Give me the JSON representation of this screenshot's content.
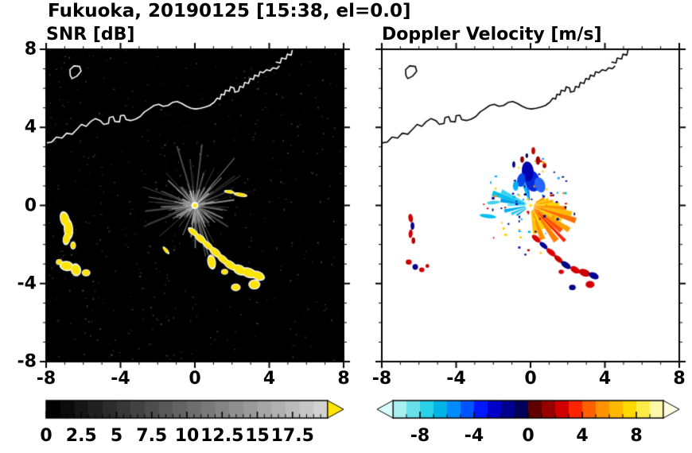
{
  "title": "Fukuoka, 20190125 [15:38, el=0.0]",
  "chart_data": {
    "type": "heatmap",
    "title": "Fukuoka, 20190125 [15:38, el=0.0]",
    "station": "Fukuoka",
    "date": "20190125",
    "time": "15:38",
    "elevation": "el=0.0",
    "subplots": [
      {
        "id": "snr",
        "title": "SNR [dB]",
        "xlim": [
          -8,
          8
        ],
        "ylim": [
          -8,
          8
        ],
        "xticks": [
          -8,
          -4,
          0,
          4,
          8
        ],
        "yticks": [
          8,
          4,
          0,
          -4,
          -8
        ],
        "minor_tick_step": 1,
        "background": "#000000",
        "coast_color": "#ffffff",
        "colorbar": {
          "range": [
            0,
            20
          ],
          "tick_values": [
            0,
            2.5,
            5,
            7.5,
            10,
            12.5,
            15,
            17.5
          ],
          "tick_labels": [
            "0",
            "2.5",
            "5",
            "7.5",
            "10",
            "12.5",
            "15",
            "17.5"
          ],
          "minor_step": 0.5,
          "cell_colors": [
            "#000000",
            "#0b0b0b",
            "#161616",
            "#212121",
            "#2c2c2c",
            "#373737",
            "#424242",
            "#4d4d4d",
            "#585858",
            "#636363",
            "#6e6e6e",
            "#797979",
            "#848484",
            "#8f8f8f",
            "#9a9a9a",
            "#a5a5a5",
            "#b0b0b0",
            "#bbbbbb",
            "#c6c6c6",
            "#d1d1d1"
          ],
          "left_arrow_color": null,
          "right_arrow_color": "#ffe400"
        }
      },
      {
        "id": "velocity",
        "title": "Doppler Velocity [m/s]",
        "xlim": [
          -8,
          8
        ],
        "ylim": [
          -8,
          8
        ],
        "xticks": [
          -8,
          -4,
          0,
          4,
          8
        ],
        "yticks": [
          8,
          4,
          0,
          -4,
          -8
        ],
        "minor_tick_step": 1,
        "background": "#ffffff",
        "coast_color": "#000000",
        "colorbar": {
          "range": [
            -10,
            10
          ],
          "tick_values": [
            -8,
            -4,
            0,
            4,
            8
          ],
          "tick_labels": [
            "-8",
            "-4",
            "0",
            "4",
            "8"
          ],
          "minor_step": 1,
          "cell_colors": [
            "#a8f0f0",
            "#68e0ec",
            "#28d0e8",
            "#00b4e8",
            "#008cff",
            "#0054ff",
            "#0018ff",
            "#0000c8",
            "#000090",
            "#000058",
            "#600000",
            "#980000",
            "#d00000",
            "#ff2400",
            "#ff6000",
            "#ff9400",
            "#ffb800",
            "#ffd800",
            "#ffec48",
            "#fff8a8"
          ],
          "left_arrow_color": "#d8fcfc",
          "right_arrow_color": "#fffce0"
        }
      }
    ],
    "coastline": {
      "main": [
        [
          -8.0,
          3.2
        ],
        [
          -7.7,
          3.25
        ],
        [
          -7.45,
          3.5
        ],
        [
          -7.15,
          3.45
        ],
        [
          -6.9,
          3.7
        ],
        [
          -6.6,
          3.65
        ],
        [
          -6.35,
          3.9
        ],
        [
          -6.1,
          4.15
        ],
        [
          -5.85,
          4.05
        ],
        [
          -5.6,
          4.3
        ],
        [
          -5.35,
          4.45
        ],
        [
          -5.1,
          4.35
        ],
        [
          -4.9,
          4.15
        ],
        [
          -4.65,
          4.2
        ],
        [
          -4.6,
          4.5
        ],
        [
          -4.4,
          4.55
        ],
        [
          -4.3,
          4.3
        ],
        [
          -4.05,
          4.28
        ],
        [
          -4.0,
          4.6
        ],
        [
          -3.8,
          4.62
        ],
        [
          -3.7,
          4.4
        ],
        [
          -3.45,
          4.35
        ],
        [
          -3.2,
          4.42
        ],
        [
          -2.95,
          4.55
        ],
        [
          -2.7,
          4.8
        ],
        [
          -2.45,
          4.95
        ],
        [
          -2.2,
          5.12
        ],
        [
          -1.95,
          5.18
        ],
        [
          -1.7,
          5.08
        ],
        [
          -1.45,
          5.12
        ],
        [
          -1.2,
          5.28
        ],
        [
          -0.95,
          5.32
        ],
        [
          -0.7,
          5.22
        ],
        [
          -0.45,
          5.08
        ],
        [
          -0.2,
          4.98
        ],
        [
          0.05,
          4.94
        ],
        [
          0.3,
          4.98
        ],
        [
          0.55,
          5.04
        ],
        [
          0.8,
          5.12
        ],
        [
          1.05,
          5.3
        ],
        [
          1.2,
          5.5
        ],
        [
          1.35,
          5.45
        ],
        [
          1.42,
          5.7
        ],
        [
          1.58,
          5.66
        ],
        [
          1.65,
          5.9
        ],
        [
          1.85,
          5.85
        ],
        [
          1.92,
          6.08
        ],
        [
          2.1,
          6.02
        ],
        [
          2.15,
          5.8
        ],
        [
          2.35,
          5.85
        ],
        [
          2.42,
          6.1
        ],
        [
          2.6,
          6.05
        ],
        [
          2.68,
          6.3
        ],
        [
          2.88,
          6.25
        ],
        [
          2.97,
          6.5
        ],
        [
          3.15,
          6.45
        ],
        [
          3.22,
          6.68
        ],
        [
          3.42,
          6.62
        ],
        [
          3.5,
          6.85
        ],
        [
          3.68,
          6.8
        ],
        [
          3.85,
          6.95
        ],
        [
          4.05,
          6.9
        ],
        [
          4.2,
          7.05
        ],
        [
          4.4,
          7.0
        ],
        [
          4.55,
          7.15
        ]
      ],
      "island": [
        [
          -6.6,
          6.5
        ],
        [
          -6.35,
          6.62
        ],
        [
          -6.12,
          6.88
        ],
        [
          -6.2,
          7.12
        ],
        [
          -6.5,
          7.15
        ],
        [
          -6.72,
          6.95
        ],
        [
          -6.7,
          6.65
        ]
      ],
      "top_right": [
        [
          4.35,
          7.35
        ],
        [
          4.6,
          7.3
        ],
        [
          4.66,
          7.55
        ],
        [
          4.9,
          7.5
        ],
        [
          4.97,
          7.75
        ],
        [
          5.18,
          7.7
        ],
        [
          5.25,
          8.0
        ]
      ]
    },
    "snr_echoes": {
      "seed": 1337,
      "spokes": {
        "count": 120,
        "min_len": 0.4,
        "max_len": 3.4
      },
      "bright_core": {
        "count": 70,
        "max_len": 1.3
      },
      "noise_dots": 420,
      "center_color": "#ffe400",
      "blob_fill": "#ffe400",
      "blob_fringe": "#ffffff",
      "blobs": [
        [
          -7.0,
          -0.7,
          0.2,
          0.32,
          15
        ],
        [
          -6.8,
          -1.2,
          0.2,
          0.42,
          5
        ],
        [
          -6.9,
          -1.7,
          0.16,
          0.26,
          -10
        ],
        [
          -6.55,
          -2.05,
          0.12,
          0.16,
          0
        ],
        [
          -7.3,
          -2.9,
          0.14,
          0.12,
          0
        ],
        [
          -6.9,
          -3.1,
          0.3,
          0.2,
          -10
        ],
        [
          -6.4,
          -3.3,
          0.22,
          0.26,
          15
        ],
        [
          -5.85,
          -3.45,
          0.18,
          0.14,
          0
        ],
        [
          -0.1,
          -1.35,
          0.26,
          0.12,
          -40
        ],
        [
          0.3,
          -1.7,
          0.3,
          0.14,
          -40
        ],
        [
          0.7,
          -2.05,
          0.28,
          0.13,
          -40
        ],
        [
          1.1,
          -2.4,
          0.3,
          0.15,
          -40
        ],
        [
          0.9,
          -2.9,
          0.18,
          0.3,
          10
        ],
        [
          1.5,
          -2.75,
          0.3,
          0.14,
          -40
        ],
        [
          1.9,
          -3.05,
          0.32,
          0.16,
          -35
        ],
        [
          2.4,
          -3.3,
          0.3,
          0.2,
          -30
        ],
        [
          2.9,
          -3.45,
          0.35,
          0.2,
          -20
        ],
        [
          3.4,
          -3.6,
          0.3,
          0.18,
          -25
        ],
        [
          3.2,
          -4.05,
          0.25,
          0.2,
          0
        ],
        [
          2.2,
          -4.2,
          0.2,
          0.15,
          0
        ],
        [
          1.6,
          -3.4,
          0.15,
          0.12,
          0
        ],
        [
          -1.55,
          -2.3,
          0.2,
          0.07,
          -50
        ],
        [
          2.45,
          0.55,
          0.3,
          0.08,
          -10
        ],
        [
          1.85,
          0.7,
          0.22,
          0.07,
          -8
        ]
      ]
    },
    "velocity_echoes": {
      "seed": 777,
      "wedges": [
        [
          -85,
          -75,
          0.3,
          1.5,
          "#ffc000"
        ],
        [
          -75,
          -66,
          0.25,
          1.9,
          "#ff9000"
        ],
        [
          -66,
          -58,
          0.3,
          1.4,
          "#ffd800"
        ],
        [
          -58,
          -50,
          0.25,
          2.3,
          "#ff8000"
        ],
        [
          -50,
          -43,
          0.3,
          1.7,
          "#ffb000"
        ],
        [
          -48,
          -44,
          0.4,
          2.6,
          "#ff2000"
        ],
        [
          -43,
          -36,
          0.2,
          2.1,
          "#ff5000"
        ],
        [
          -36,
          -29,
          0.25,
          2.4,
          "#ffa000"
        ],
        [
          -29,
          -22,
          0.2,
          1.8,
          "#ffd000"
        ],
        [
          -22,
          -15,
          0.2,
          2.5,
          "#ff7000"
        ],
        [
          -15,
          -8,
          0.15,
          2.2,
          "#ffb800"
        ],
        [
          -8,
          -1,
          0.15,
          1.9,
          "#ff9000"
        ],
        [
          -1,
          7,
          0.2,
          1.5,
          "#ffd800"
        ],
        [
          7,
          15,
          0.2,
          1.2,
          "#ffa800"
        ],
        [
          15,
          24,
          0.25,
          1.0,
          "#ffc800"
        ],
        [
          24,
          33,
          0.3,
          0.8,
          "#ff9800"
        ],
        [
          95,
          104,
          0.3,
          1.0,
          "#0080ff"
        ],
        [
          104,
          112,
          0.25,
          1.3,
          "#00b8f0"
        ],
        [
          150,
          158,
          0.3,
          1.7,
          "#40d0f0"
        ],
        [
          158,
          166,
          0.25,
          2.1,
          "#00c0f0"
        ],
        [
          166,
          174,
          0.3,
          1.6,
          "#00a0e8"
        ],
        [
          174,
          182,
          0.25,
          1.2,
          "#60e0f8"
        ],
        [
          188,
          196,
          0.3,
          1.4,
          "#00b0f0"
        ],
        [
          200,
          208,
          0.25,
          1.1,
          "#30c8f0"
        ],
        [
          212,
          219,
          0.3,
          0.9,
          "#00a8e8"
        ]
      ],
      "patches": [
        [
          0.1,
          1.25,
          0.4,
          0.55,
          15,
          "#0028d8"
        ],
        [
          -0.15,
          1.75,
          0.32,
          0.5,
          5,
          "#0000b0"
        ],
        [
          0.5,
          1.05,
          0.28,
          0.4,
          20,
          "#2864ff"
        ],
        [
          -0.5,
          1.3,
          0.22,
          0.35,
          -10,
          "#0048e8"
        ],
        [
          -0.8,
          1.0,
          0.15,
          0.25,
          0,
          "#00b0f0"
        ],
        [
          0.4,
          2.3,
          0.12,
          0.22,
          0,
          "#980000"
        ],
        [
          0.15,
          2.8,
          0.1,
          0.18,
          0,
          "#c00000"
        ],
        [
          -0.45,
          2.35,
          0.1,
          0.16,
          0,
          "#880000"
        ],
        [
          0.75,
          2.05,
          0.1,
          0.14,
          0,
          "#a80000"
        ],
        [
          -0.9,
          2.1,
          0.08,
          0.16,
          0,
          "#000088"
        ],
        [
          -0.2,
          2.55,
          0.07,
          0.12,
          0,
          "#000070"
        ],
        [
          -2.3,
          -0.55,
          0.45,
          0.1,
          -8,
          "#00c0f0"
        ],
        [
          -2.0,
          0.15,
          0.35,
          0.09,
          5,
          "#40d0f0"
        ],
        [
          -6.45,
          -0.65,
          0.12,
          0.22,
          10,
          "#d00000"
        ],
        [
          -6.35,
          -1.05,
          0.1,
          0.2,
          0,
          "#000090"
        ],
        [
          -6.45,
          -1.45,
          0.11,
          0.22,
          -5,
          "#d00000"
        ],
        [
          -6.3,
          -1.8,
          0.1,
          0.16,
          0,
          "#b00000"
        ],
        [
          -6.55,
          -2.9,
          0.16,
          0.13,
          0,
          "#c80000"
        ],
        [
          -6.2,
          -3.15,
          0.15,
          0.15,
          0,
          "#000088"
        ],
        [
          -5.85,
          -3.3,
          0.14,
          0.12,
          0,
          "#d00000"
        ],
        [
          -5.55,
          -3.1,
          0.1,
          0.1,
          0,
          "#c00000"
        ],
        [
          0.3,
          -1.7,
          0.28,
          0.13,
          -40,
          "#d80000"
        ],
        [
          0.7,
          -2.05,
          0.26,
          0.12,
          -40,
          "#000090"
        ],
        [
          1.1,
          -2.4,
          0.3,
          0.14,
          -40,
          "#e00000"
        ],
        [
          1.5,
          -2.75,
          0.28,
          0.13,
          -40,
          "#c80000"
        ],
        [
          1.9,
          -3.05,
          0.3,
          0.15,
          -35,
          "#000080"
        ],
        [
          2.4,
          -3.3,
          0.28,
          0.16,
          -30,
          "#d80000"
        ],
        [
          2.9,
          -3.45,
          0.32,
          0.18,
          -20,
          "#c80000"
        ],
        [
          3.4,
          -3.6,
          0.28,
          0.16,
          -25,
          "#000090"
        ],
        [
          3.2,
          -4.05,
          0.24,
          0.18,
          0,
          "#d00000"
        ],
        [
          2.25,
          -4.2,
          0.18,
          0.14,
          0,
          "#000088"
        ],
        [
          1.65,
          -3.4,
          0.14,
          0.11,
          0,
          "#d00000"
        ]
      ],
      "specks": {
        "count": 80,
        "r_min": 0.3,
        "r_max": 2.6,
        "palette": [
          "#0000a0",
          "#d00000",
          "#ff9000",
          "#00b0f0",
          "#ffd000",
          "#000070"
        ]
      },
      "center_color": "#ffe400"
    }
  }
}
